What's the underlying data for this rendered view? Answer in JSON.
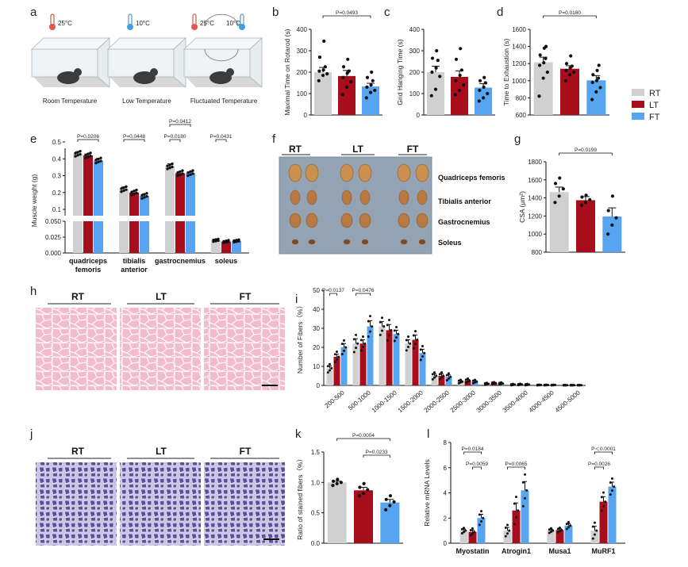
{
  "colors": {
    "RT": "#d0d0d0",
    "LT": "#a80d1c",
    "FT": "#57a4f0"
  },
  "panel_letters": [
    "a",
    "b",
    "c",
    "d",
    "e",
    "f",
    "g",
    "h",
    "i",
    "j",
    "k",
    "l"
  ],
  "legend": [
    "RT",
    "LT",
    "FT"
  ],
  "panel_a": {
    "temps": [
      "25°C",
      "10°C",
      "25°C",
      "10°C"
    ],
    "labels": [
      "Room Temperature",
      "Low Temperature",
      "Fluctuated Temperature"
    ]
  },
  "panel_f": {
    "groups": [
      "RT",
      "LT",
      "FT"
    ],
    "tissues": [
      "Quadriceps femoris",
      "Tibialis anterior",
      "Gastrocnemius",
      "Soleus"
    ]
  },
  "panel_h": {
    "groups": [
      "RT",
      "LT",
      "FT"
    ]
  },
  "panel_j": {
    "groups": [
      "RT",
      "LT",
      "FT"
    ]
  },
  "chart_data": [
    {
      "id": "b",
      "type": "bar",
      "ylabel": "Maximal Time on Rotarod (s)",
      "ylim": [
        0,
        400
      ],
      "yticks": [
        0,
        100,
        200,
        300,
        400
      ],
      "categories": [
        "RT",
        "LT",
        "FT"
      ],
      "values": [
        200,
        182,
        133
      ],
      "errors": [
        22,
        26,
        15
      ],
      "points": [
        [
          160,
          185,
          192,
          205,
          210,
          225,
          270,
          345
        ],
        [
          95,
          130,
          155,
          175,
          195,
          205,
          225,
          260
        ],
        [
          80,
          105,
          115,
          130,
          140,
          160,
          175,
          200
        ]
      ],
      "annotations": [
        {
          "from": 0,
          "to": 2,
          "text": "P=0.0493"
        }
      ]
    },
    {
      "id": "c",
      "type": "bar",
      "ylabel": "Grid Hanging Time (s)",
      "ylim": [
        0,
        400
      ],
      "yticks": [
        0,
        100,
        200,
        300,
        400
      ],
      "categories": [
        "RT",
        "LT",
        "FT"
      ],
      "values": [
        200,
        178,
        128
      ],
      "errors": [
        28,
        28,
        18
      ],
      "points": [
        [
          90,
          120,
          180,
          200,
          220,
          255,
          265,
          300
        ],
        [
          95,
          115,
          140,
          160,
          185,
          210,
          260,
          310
        ],
        [
          65,
          80,
          100,
          115,
          130,
          150,
          160,
          175
        ]
      ],
      "annotations": []
    },
    {
      "id": "d",
      "type": "bar",
      "ylabel": "Time to Exhaustion (s)",
      "ylim": [
        600,
        1600
      ],
      "yticks": [
        600,
        800,
        1000,
        1200,
        1400,
        1600
      ],
      "categories": [
        "RT",
        "LT",
        "FT"
      ],
      "values": [
        1215,
        1140,
        1005
      ],
      "errors": [
        60,
        35,
        55
      ],
      "points": [
        [
          820,
          1030,
          1100,
          1180,
          1210,
          1260,
          1300,
          1380,
          1400
        ],
        [
          1000,
          1070,
          1100,
          1120,
          1150,
          1170,
          1200,
          1290
        ],
        [
          780,
          870,
          920,
          980,
          1000,
          1030,
          1070,
          1120,
          1180
        ]
      ],
      "annotations": [
        {
          "from": 0,
          "to": 2,
          "text": "P=0.0180"
        }
      ]
    },
    {
      "id": "e",
      "type": "bar",
      "ylabel": "Muscle weight (g)",
      "broken_axis": true,
      "lower_yticks": [
        "0.000",
        "0.025",
        "0.050"
      ],
      "upper_yticks": [
        "0.1",
        "0.2",
        "0.3",
        "0.4",
        "0.5"
      ],
      "categories": [
        "quadriceps femoris",
        "tibialis anterior",
        "gastrocnemius",
        "soleus"
      ],
      "series": [
        {
          "name": "RT",
          "values": [
            0.43,
            0.22,
            0.355,
            0.02
          ],
          "errors": [
            0.012,
            0.012,
            0.015,
            0.0015
          ]
        },
        {
          "name": "LT",
          "values": [
            0.42,
            0.2,
            0.315,
            0.018
          ],
          "errors": [
            0.008,
            0.008,
            0.01,
            0.0012
          ]
        },
        {
          "name": "FT",
          "values": [
            0.39,
            0.18,
            0.315,
            0.019
          ],
          "errors": [
            0.012,
            0.012,
            0.008,
            0.0012
          ]
        }
      ],
      "annotations": [
        {
          "cat": 0,
          "from": 0,
          "to": 2,
          "text": "P=0.0206"
        },
        {
          "cat": 1,
          "from": 0,
          "to": 2,
          "text": "P=0.0448"
        },
        {
          "cat": 2,
          "from": 0,
          "to": 1,
          "text": "P=0.0180"
        },
        {
          "cat": 2,
          "from": 0,
          "to": 2,
          "text": "P=0.0412"
        },
        {
          "cat": 3,
          "from": 0,
          "to": 1,
          "text": "P=0.0431"
        }
      ]
    },
    {
      "id": "g",
      "type": "bar",
      "ylabel": "CSA (μm²)",
      "ylim": [
        800,
        1800
      ],
      "yticks": [
        800,
        1000,
        1200,
        1400,
        1600,
        1800
      ],
      "categories": [
        "RT",
        "LT",
        "FT"
      ],
      "values": [
        1465,
        1375,
        1195
      ],
      "errors": [
        55,
        40,
        95
      ],
      "points": [
        [
          1350,
          1420,
          1500,
          1560,
          1620
        ],
        [
          1320,
          1350,
          1380,
          1410,
          1430
        ],
        [
          1000,
          1100,
          1180,
          1260,
          1420
        ]
      ],
      "annotations": [
        {
          "from": 0,
          "to": 2,
          "text": "P=0.0199"
        }
      ]
    },
    {
      "id": "i",
      "type": "bar",
      "ylabel": "Number of Fibers（%）",
      "ylim": [
        0,
        50
      ],
      "yticks": [
        0,
        10,
        20,
        30,
        40,
        50
      ],
      "categories": [
        "200-500",
        "500-1000",
        "1000-1500",
        "1500-2000",
        "2000-2500",
        "2500-3000",
        "3000-3500",
        "3500-4000",
        "4000-4500",
        "4500-5000"
      ],
      "series": [
        {
          "name": "RT",
          "values": [
            9,
            22,
            31,
            22,
            5,
            2,
            0.8,
            0.4,
            0.2,
            0.1
          ],
          "errors": [
            1.2,
            2.5,
            2.5,
            2,
            1,
            0.5,
            0.3,
            0.2,
            0.1,
            0.1
          ]
        },
        {
          "name": "LT",
          "values": [
            15,
            22,
            29,
            24,
            5,
            2.5,
            1.2,
            0.5,
            0.2,
            0.1
          ],
          "errors": [
            1.5,
            2,
            3,
            2.5,
            1,
            0.6,
            0.3,
            0.2,
            0.1,
            0.1
          ]
        },
        {
          "name": "FT",
          "values": [
            20,
            31,
            27,
            17,
            4.5,
            2,
            1,
            0.4,
            0.2,
            0.1
          ],
          "errors": [
            2,
            3,
            2,
            2,
            1,
            0.5,
            0.3,
            0.2,
            0.1,
            0.1
          ]
        }
      ],
      "annotations": [
        {
          "cat": 0,
          "from": 0,
          "to": 1,
          "text": "P=0.0137"
        },
        {
          "cat": 1,
          "from": 0,
          "to": 2,
          "text": "P=0.0476"
        }
      ]
    },
    {
      "id": "k",
      "type": "bar",
      "ylabel": "Ratio of stained fibers（%）",
      "ylim": [
        0,
        1.5
      ],
      "yticks": [
        "0.0",
        "0.5",
        "1.0",
        "1.5"
      ],
      "categories": [
        "RT",
        "LT",
        "FT"
      ],
      "values": [
        1.0,
        0.87,
        0.67
      ],
      "errors": [
        0.02,
        0.05,
        0.05
      ],
      "points": [
        [
          0.95,
          0.98,
          1.0,
          1.02,
          1.05
        ],
        [
          0.78,
          0.82,
          0.88,
          0.92,
          0.98
        ],
        [
          0.55,
          0.62,
          0.68,
          0.72,
          0.78
        ]
      ],
      "annotations": [
        {
          "from": 0,
          "to": 2,
          "text": "P=0.0004"
        },
        {
          "from": 1,
          "to": 2,
          "text": "P=0.0233"
        }
      ]
    },
    {
      "id": "l",
      "type": "bar",
      "ylabel": "Relative mRNA Levels",
      "ylim": [
        0,
        8
      ],
      "yticks": [
        0,
        2,
        4,
        6,
        8
      ],
      "categories": [
        "Myostatin",
        "Atrogin1",
        "Musa1",
        "MuRF1"
      ],
      "series": [
        {
          "name": "RT",
          "values": [
            1.0,
            1.0,
            1.0,
            1.0
          ],
          "errors": [
            0.12,
            0.25,
            0.1,
            0.35
          ]
        },
        {
          "name": "LT",
          "values": [
            0.9,
            2.6,
            1.05,
            3.3
          ],
          "errors": [
            0.15,
            0.6,
            0.1,
            0.4
          ]
        },
        {
          "name": "FT",
          "values": [
            2.0,
            4.2,
            1.4,
            4.5
          ],
          "errors": [
            0.3,
            0.7,
            0.15,
            0.35
          ]
        }
      ],
      "annotations": [
        {
          "cat": 0,
          "from": 0,
          "to": 2,
          "text": "P=0.0184"
        },
        {
          "cat": 0,
          "from": 1,
          "to": 2,
          "text": "P=0.0059"
        },
        {
          "cat": 1,
          "from": 0,
          "to": 2,
          "text": "P=0.0065"
        },
        {
          "cat": 3,
          "from": 0,
          "to": 1,
          "text": "P=0.0026"
        },
        {
          "cat": 3,
          "from": 0,
          "to": 2,
          "text": "P＜0.0001"
        }
      ]
    }
  ]
}
